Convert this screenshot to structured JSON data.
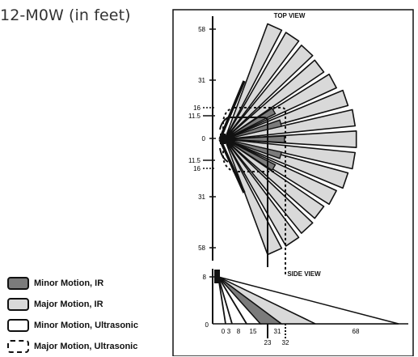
{
  "title": "12-M0W (in feet)",
  "top_view": {
    "label": "TOP VIEW",
    "y_ticks": [
      "58",
      "31",
      "16",
      "11.5",
      "0",
      "11.5",
      "16",
      "31",
      "58"
    ]
  },
  "side_view": {
    "label": "SIDE VIEW",
    "height_tick": "8",
    "origin_tick": "0",
    "x_ticks": [
      "0",
      "3",
      "8",
      "15",
      "31",
      "68"
    ],
    "x_ticks_lower": [
      "23",
      "32"
    ]
  },
  "legend": {
    "items": [
      {
        "label": "Minor Motion, IR",
        "swatch": "dark"
      },
      {
        "label": "Major Motion, IR",
        "swatch": "light"
      },
      {
        "label": "Minor Motion, Ultrasonic",
        "swatch": "white"
      },
      {
        "label": "Major Motion, Ultrasonic",
        "swatch": "dashed"
      }
    ]
  },
  "colors": {
    "minor_ir": "#7b7b7b",
    "major_ir": "#d9d9d9",
    "outline": "#111111"
  }
}
